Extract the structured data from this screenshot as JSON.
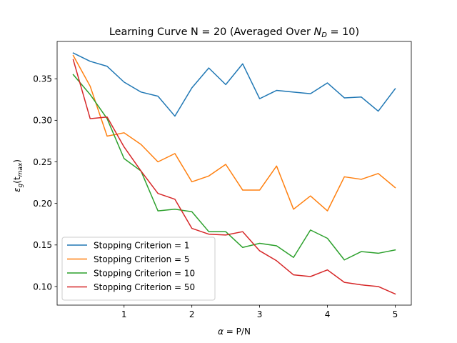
{
  "chart_data": {
    "type": "line",
    "title": "Learning Curve N = 20 (Averaged Over N_D = 10)",
    "title_parts": {
      "prefix": "Learning Curve N = 20 (Averaged Over ",
      "var": "N",
      "sub": "D",
      "suffix": " = 10)"
    },
    "xlabel": "α = P/N",
    "xlabel_parts": {
      "var": "α",
      "rest": " = P/N"
    },
    "ylabel": "ε_g(t_max)",
    "ylabel_parts": {
      "var": "ε",
      "sub1": "g",
      "mid": "(t",
      "sub2": "max",
      "end": ")"
    },
    "xlim": [
      0.0125,
      5.2375
    ],
    "ylim": [
      0.0776,
      0.3949
    ],
    "xticks": [
      1,
      2,
      3,
      4,
      5
    ],
    "xtick_labels": [
      "1",
      "2",
      "3",
      "4",
      "5"
    ],
    "yticks": [
      0.1,
      0.15,
      0.2,
      0.25,
      0.3,
      0.35
    ],
    "ytick_labels": [
      "0.10",
      "0.15",
      "0.20",
      "0.25",
      "0.30",
      "0.35"
    ],
    "grid": false,
    "legend_position": "lower-left",
    "x": [
      0.25,
      0.5,
      0.75,
      1.0,
      1.25,
      1.5,
      1.75,
      2.0,
      2.25,
      2.5,
      2.75,
      3.0,
      3.25,
      3.5,
      3.75,
      4.0,
      4.25,
      4.5,
      4.75,
      5.0
    ],
    "series": [
      {
        "name": "Stopping Criterion = 1",
        "color": "#1f77b4",
        "values": [
          0.381,
          0.371,
          0.365,
          0.346,
          0.334,
          0.329,
          0.305,
          0.339,
          0.363,
          0.343,
          0.368,
          0.326,
          0.336,
          0.334,
          0.332,
          0.345,
          0.327,
          0.328,
          0.311,
          0.338
        ]
      },
      {
        "name": "Stopping Criterion = 5",
        "color": "#ff7f0e",
        "values": [
          0.378,
          0.341,
          0.281,
          0.285,
          0.271,
          0.25,
          0.26,
          0.226,
          0.233,
          0.247,
          0.216,
          0.216,
          0.245,
          0.193,
          0.209,
          0.191,
          0.232,
          0.229,
          0.236,
          0.219
        ]
      },
      {
        "name": "Stopping Criterion = 10",
        "color": "#2ca02c",
        "values": [
          0.355,
          0.331,
          0.302,
          0.254,
          0.239,
          0.191,
          0.193,
          0.19,
          0.166,
          0.166,
          0.147,
          0.152,
          0.149,
          0.135,
          0.168,
          0.158,
          0.132,
          0.142,
          0.14,
          0.144
        ]
      },
      {
        "name": "Stopping Criterion = 50",
        "color": "#d62728",
        "values": [
          0.373,
          0.302,
          0.304,
          0.268,
          0.239,
          0.212,
          0.205,
          0.17,
          0.163,
          0.162,
          0.166,
          0.143,
          0.131,
          0.114,
          0.112,
          0.12,
          0.105,
          0.102,
          0.1,
          0.091
        ]
      }
    ]
  }
}
